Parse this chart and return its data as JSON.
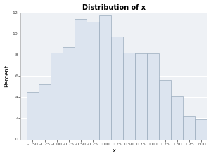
{
  "title": "Distribution of x",
  "xlabel": "x",
  "ylabel": "Percent",
  "bar_left_edges": [
    -1.625,
    -1.375,
    -1.125,
    -0.875,
    -0.625,
    -0.375,
    -0.125,
    0.125,
    0.375,
    0.625,
    0.875,
    1.125,
    1.375,
    1.625,
    1.875
  ],
  "bar_centers": [
    -1.5,
    -1.25,
    -1.0,
    -0.75,
    -0.5,
    -0.25,
    0.0,
    0.25,
    0.5,
    0.75,
    1.0,
    1.25,
    1.5,
    1.75,
    2.0
  ],
  "bar_heights": [
    4.5,
    5.2,
    8.2,
    8.7,
    11.4,
    11.1,
    11.7,
    9.7,
    8.2,
    8.1,
    8.1,
    5.6,
    4.1,
    2.2,
    1.9
  ],
  "bar_width": 0.25,
  "bar_color": "#dce4ef",
  "bar_edge_color": "#9aabbd",
  "ylim": [
    0,
    12
  ],
  "yticks": [
    0,
    2,
    4,
    6,
    8,
    10,
    12
  ],
  "xtick_labels": [
    "-1.50",
    "-1.25",
    "-1.00",
    "-0.75",
    "-0.50",
    "-0.25",
    "0.00",
    "0.25",
    "0.50",
    "0.75",
    "1.00",
    "1.25",
    "1.50",
    "1.75",
    "2.00"
  ],
  "xtick_positions": [
    -1.5,
    -1.25,
    -1.0,
    -0.75,
    -0.5,
    -0.25,
    0.0,
    0.25,
    0.5,
    0.75,
    1.0,
    1.25,
    1.5,
    1.75,
    2.0
  ],
  "xlim": [
    -1.75,
    2.125
  ],
  "background_color": "#ffffff",
  "plot_bg_color": "#eef1f5",
  "title_fontsize": 7,
  "axis_label_fontsize": 6,
  "tick_fontsize": 4.5,
  "ytick_labels": [
    "0",
    "2",
    "4",
    "6",
    "8",
    "10",
    "12"
  ]
}
